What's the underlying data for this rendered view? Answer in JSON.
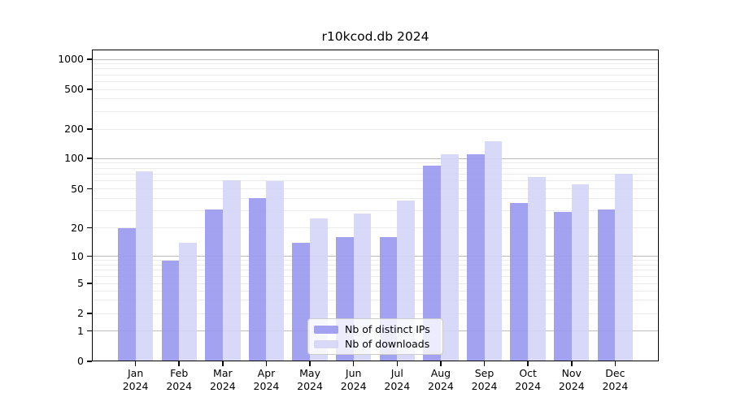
{
  "title": "r10kcod.db 2024",
  "chart_data": {
    "type": "bar",
    "title": "r10kcod.db 2024",
    "x_year": "2024",
    "categories": [
      "Jan",
      "Feb",
      "Mar",
      "Apr",
      "May",
      "Jun",
      "Jul",
      "Aug",
      "Sep",
      "Oct",
      "Nov",
      "Dec"
    ],
    "series": [
      {
        "name": "Nb of distinct IPs",
        "color": "#9898f0",
        "values": [
          20,
          9,
          31,
          40,
          14,
          16,
          16,
          85,
          110,
          36,
          29,
          31
        ]
      },
      {
        "name": "Nb of downloads",
        "color": "#d4d4f8",
        "values": [
          75,
          14,
          61,
          60,
          25,
          28,
          38,
          110,
          150,
          65,
          55,
          70
        ]
      }
    ],
    "y_ticks": [
      0,
      1,
      2,
      5,
      10,
      20,
      50,
      100,
      200,
      500,
      1000
    ],
    "ylim": [
      0,
      1000
    ],
    "y_scale": "log-like with zero baseline",
    "grid": "on",
    "legend_position": "lower center"
  }
}
